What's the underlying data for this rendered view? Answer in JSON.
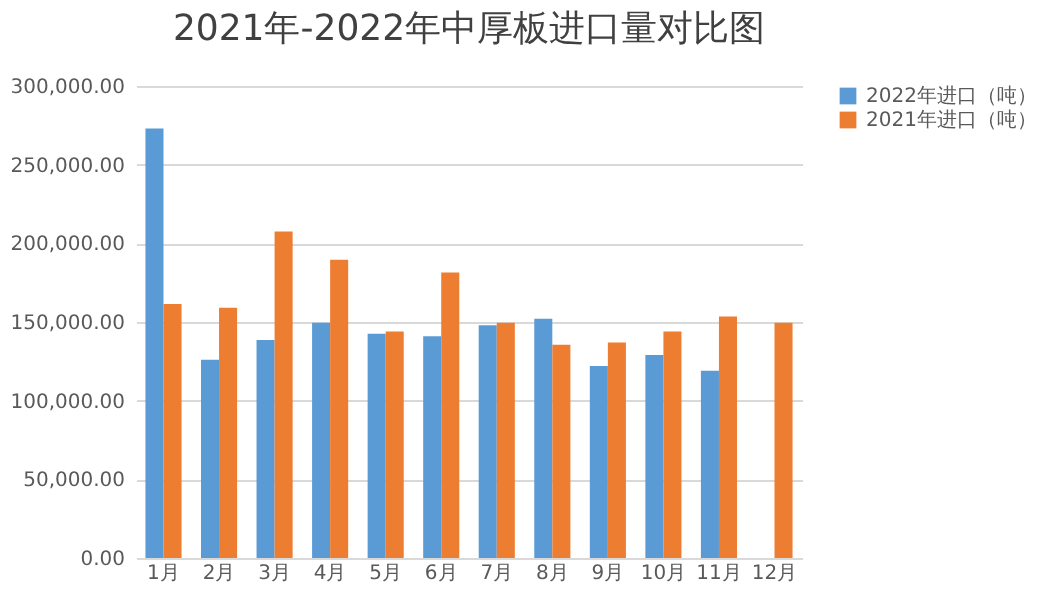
{
  "chart_data": {
    "type": "bar",
    "title": "2021年-2022年中厚板进口量对比图",
    "categories": [
      "1月",
      "2月",
      "3月",
      "4月",
      "5月",
      "6月",
      "7月",
      "8月",
      "9月",
      "10月",
      "11月",
      "12月"
    ],
    "series": [
      {
        "name": "2022年进口（吨）",
        "color": "#5b9bd5",
        "values": [
          273000,
          126000,
          138500,
          149500,
          142500,
          141000,
          148000,
          152000,
          122000,
          129000,
          119000,
          null
        ]
      },
      {
        "name": "2021年进口（吨）",
        "color": "#ed7d31",
        "values": [
          161500,
          159000,
          207500,
          189500,
          144000,
          181500,
          149500,
          135500,
          137000,
          144000,
          153500,
          149500
        ]
      }
    ],
    "ylim": [
      0,
      300000
    ],
    "yticks": [
      {
        "value": 0,
        "label": "0.00"
      },
      {
        "value": 50000,
        "label": "50,000.00"
      },
      {
        "value": 100000,
        "label": "100,000.00"
      },
      {
        "value": 150000,
        "label": "150,000.00"
      },
      {
        "value": 200000,
        "label": "200,000.00"
      },
      {
        "value": 250000,
        "label": "250,000.00"
      },
      {
        "value": 300000,
        "label": "300,000.00"
      }
    ],
    "grid": "y",
    "legend": "right"
  }
}
